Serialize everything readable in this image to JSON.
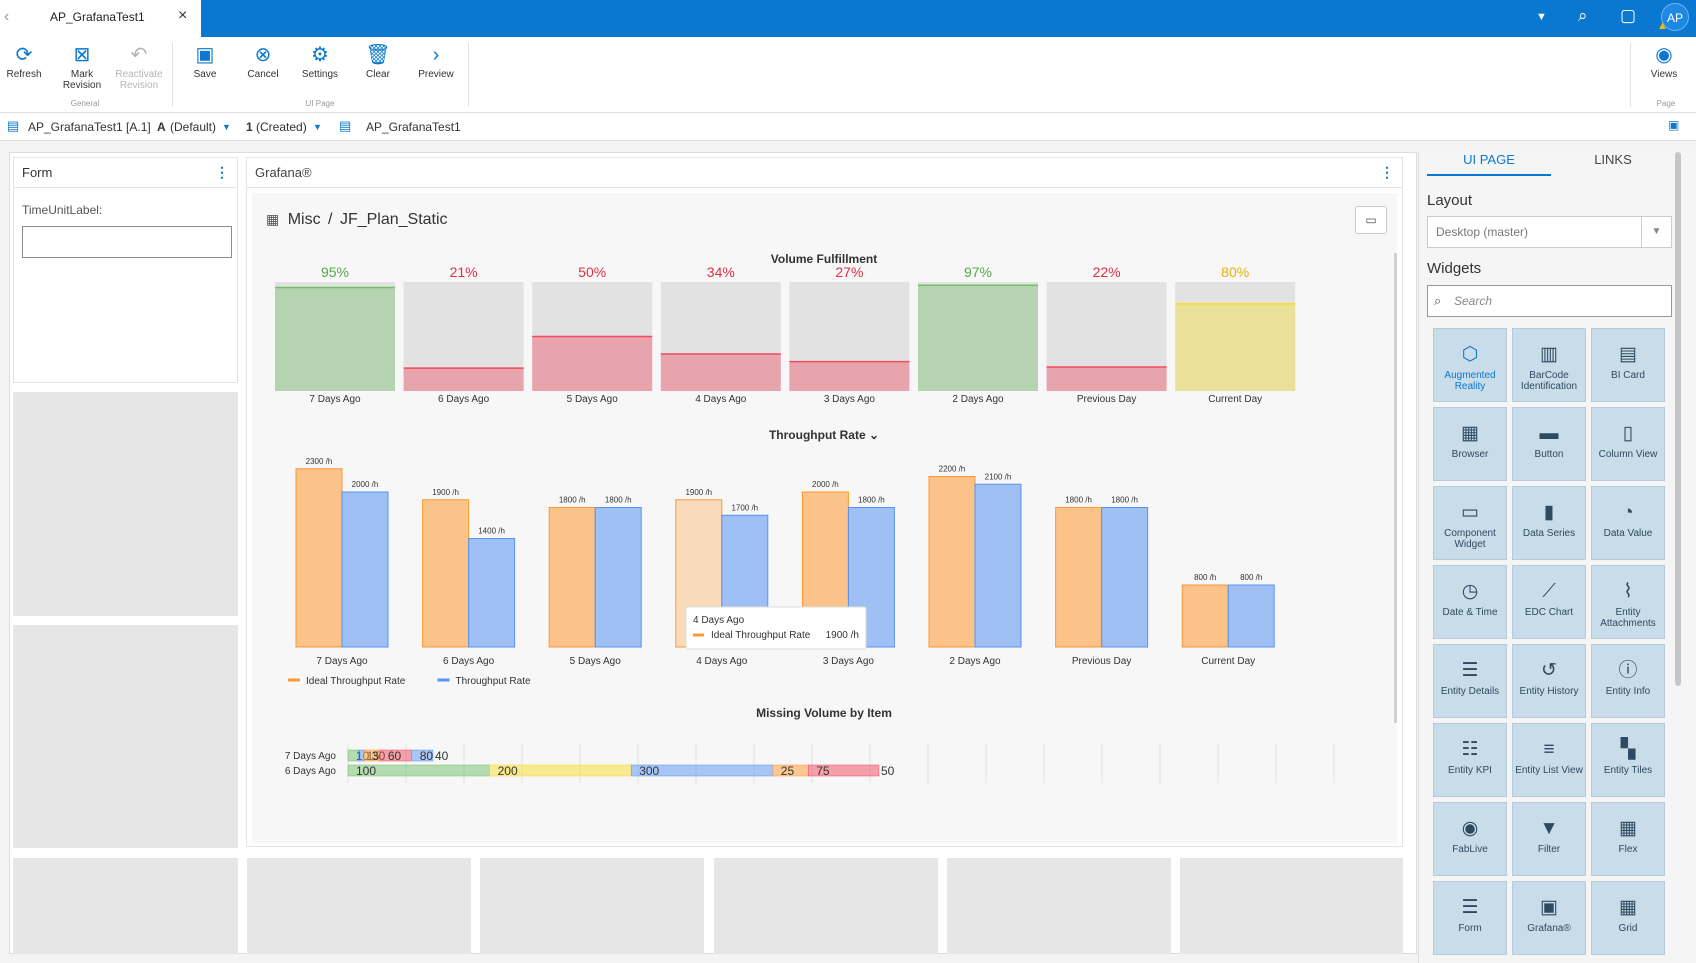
{
  "tab": {
    "title": "AP_GrafanaTest1"
  },
  "user": {
    "initials": "AP"
  },
  "ribbon": {
    "buttons": {
      "refresh": "Refresh",
      "mark_revision": "Mark Revision",
      "reactivate_revision": "Reactivate Revision",
      "save": "Save",
      "cancel": "Cancel",
      "settings": "Settings",
      "clear": "Clear",
      "preview": "Preview",
      "views": "Views"
    },
    "groups": {
      "general": "General",
      "ui_page": "UI Page",
      "page": "Page"
    }
  },
  "breadcrumb": {
    "entity": "AP_GrafanaTest1 [A.1]",
    "revision": "A",
    "revision_state": "(Default)",
    "version": "1",
    "version_state": "(Created)",
    "page": "AP_GrafanaTest1"
  },
  "form_widget": {
    "title": "Form",
    "label": "TimeUnitLabel:",
    "value": ""
  },
  "grafana_widget": {
    "title": "Grafana®",
    "breadcrumb_folder": "Misc",
    "breadcrumb_sep": "/",
    "dashboard": "JF_Plan_Static",
    "panels": {
      "volume_title": "Volume Fulfillment",
      "throughput_title": "Throughput Rate",
      "missing_title": "Missing Volume by Item"
    },
    "tooltip": {
      "title": "4 Days Ago",
      "series": "Ideal Throughput Rate",
      "value": "1900 /h"
    }
  },
  "chart_data": [
    {
      "type": "bar",
      "title": "Volume Fulfillment",
      "categories": [
        "7 Days Ago",
        "6 Days Ago",
        "5 Days Ago",
        "4 Days Ago",
        "3 Days Ago",
        "2 Days Ago",
        "Previous Day",
        "Current Day"
      ],
      "values": [
        95,
        21,
        50,
        34,
        27,
        97,
        22,
        80
      ],
      "labels": [
        "95%",
        "21%",
        "50%",
        "34%",
        "27%",
        "97%",
        "22%",
        "80%"
      ],
      "colors": {
        "good": "#73bf69",
        "bad": "#f2495c",
        "warn": "#fade2a"
      },
      "ylim": [
        0,
        100
      ]
    },
    {
      "type": "bar",
      "title": "Throughput Rate",
      "categories": [
        "7 Days Ago",
        "6 Days Ago",
        "5 Days Ago",
        "4 Days Ago",
        "3 Days Ago",
        "2 Days Ago",
        "Previous Day",
        "Current Day"
      ],
      "series": [
        {
          "name": "Ideal Throughput Rate",
          "color": "#ff9830",
          "values": [
            2300,
            1900,
            1800,
            1900,
            2000,
            2200,
            1800,
            800
          ],
          "labels": [
            "2300 /h",
            "1900 /h",
            "1800 /h",
            "1900 /h",
            "2000 /h",
            "2200 /h",
            "1800 /h",
            "800 /h"
          ]
        },
        {
          "name": "Throughput Rate",
          "color": "#5794f2",
          "values": [
            2000,
            1400,
            1800,
            1700,
            1800,
            2100,
            1800,
            800
          ],
          "labels": [
            "2000 /h",
            "1400 /h",
            "1800 /h",
            "1700 /h",
            "1800 /h",
            "2100 /h",
            "1800 /h",
            "800 /h"
          ]
        }
      ],
      "ylim": [
        0,
        2400
      ]
    },
    {
      "type": "bar",
      "orientation": "horizontal",
      "stacked": true,
      "title": "Missing Volume by Item",
      "categories": [
        "7 Days Ago",
        "6 Days Ago"
      ],
      "rows": [
        {
          "segments": [
            {
              "label": "10",
              "value": 10,
              "color": "#73bf69"
            },
            {
              "label": "15",
              "value": 5,
              "color": "#5794f2"
            },
            {
              "label": "30",
              "value": 15,
              "color": "#ff9830"
            },
            {
              "label": "60",
              "value": 30,
              "color": "#f2495c"
            },
            {
              "label": "80",
              "value": 20,
              "color": "#5794f2"
            }
          ],
          "end_label": "40"
        },
        {
          "segments": [
            {
              "label": "100",
              "value": 100,
              "color": "#73bf69"
            },
            {
              "label": "200",
              "value": 100,
              "color": "#fade2a"
            },
            {
              "label": "300",
              "value": 100,
              "color": "#5794f2"
            },
            {
              "label": "25",
              "value": 25,
              "color": "#ff9830"
            },
            {
              "label": "75",
              "value": 50,
              "color": "#f2495c"
            }
          ],
          "end_label": "50"
        }
      ],
      "xlim": [
        0,
        400
      ]
    }
  ],
  "right_panel": {
    "tabs": {
      "ui_page": "UI PAGE",
      "links": "LINKS"
    },
    "layout_label": "Layout",
    "layout_value": "Desktop (master)",
    "widgets_label": "Widgets",
    "search_placeholder": "Search",
    "widgets": [
      {
        "label": "Augmented Reality",
        "icon": "cube-icon",
        "glyph": "⬡",
        "highlight": true
      },
      {
        "label": "BarCode Identification",
        "icon": "barcode-icon",
        "glyph": "▥"
      },
      {
        "label": "BI Card",
        "icon": "bi-card-icon",
        "glyph": "▤"
      },
      {
        "label": "Browser",
        "icon": "browser-icon",
        "glyph": "▦"
      },
      {
        "label": "Button",
        "icon": "button-icon",
        "glyph": "▬"
      },
      {
        "label": "Column View",
        "icon": "column-view-icon",
        "glyph": "▯"
      },
      {
        "label": "Component Widget",
        "icon": "component-icon",
        "glyph": "▭"
      },
      {
        "label": "Data Series",
        "icon": "bar-chart-icon",
        "glyph": "▮"
      },
      {
        "label": "Data Value",
        "icon": "gauge-icon",
        "glyph": "◔"
      },
      {
        "label": "Date & Time",
        "icon": "clock-icon",
        "glyph": "◷"
      },
      {
        "label": "EDC Chart",
        "icon": "line-chart-icon",
        "glyph": "⟋"
      },
      {
        "label": "Entity Attachments",
        "icon": "paperclip-icon",
        "glyph": "⌇"
      },
      {
        "label": "Entity Details",
        "icon": "details-icon",
        "glyph": "☰"
      },
      {
        "label": "Entity History",
        "icon": "history-icon",
        "glyph": "↺"
      },
      {
        "label": "Entity Info",
        "icon": "info-icon",
        "glyph": "ⓘ"
      },
      {
        "label": "Entity KPI",
        "icon": "kpi-icon",
        "glyph": "☷"
      },
      {
        "label": "Entity List View",
        "icon": "list-icon",
        "glyph": "≡"
      },
      {
        "label": "Entity Tiles",
        "icon": "tiles-icon",
        "glyph": "▚"
      },
      {
        "label": "FabLive",
        "icon": "fablive-icon",
        "glyph": "◉"
      },
      {
        "label": "Filter",
        "icon": "filter-icon",
        "glyph": "▼"
      },
      {
        "label": "Flex",
        "icon": "flex-icon",
        "glyph": "▦"
      },
      {
        "label": "Form",
        "icon": "form-icon",
        "glyph": "☰"
      },
      {
        "label": "Grafana®",
        "icon": "grafana-icon",
        "glyph": "▣"
      },
      {
        "label": "Grid",
        "icon": "grid-icon",
        "glyph": "▦"
      }
    ]
  }
}
